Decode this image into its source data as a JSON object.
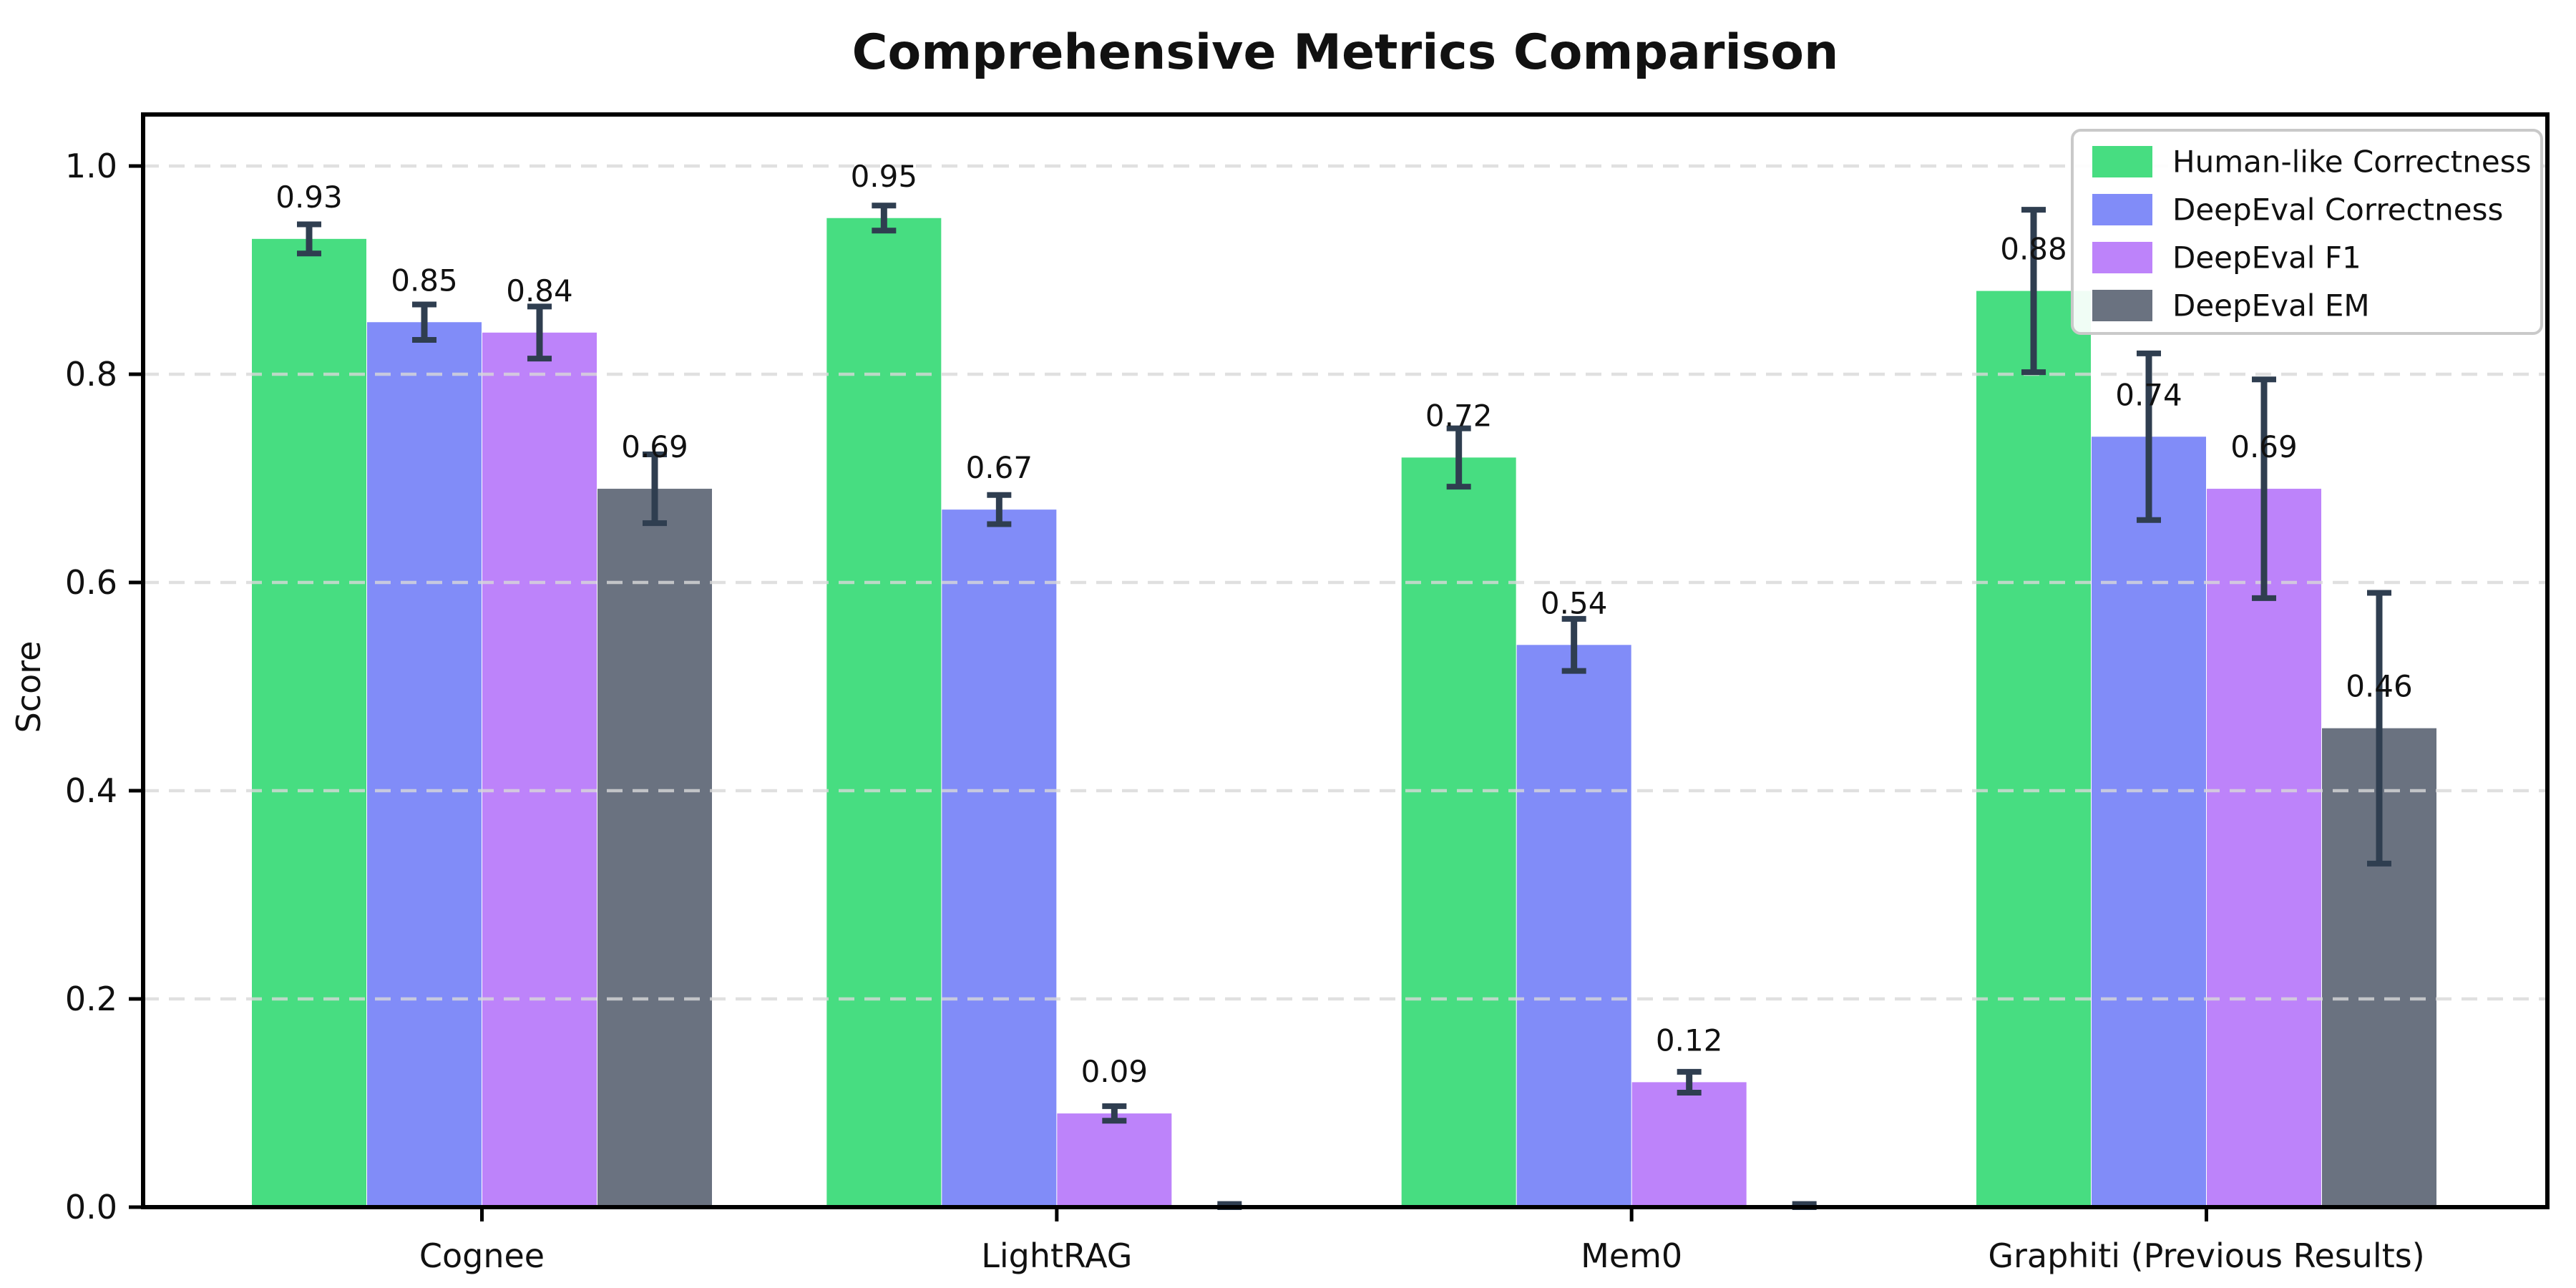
{
  "figure": {
    "title": "Comprehensive Metrics Comparison",
    "y_axis_label": "Score"
  },
  "chart_data": {
    "type": "bar",
    "title": "Comprehensive Metrics Comparison",
    "xlabel": "",
    "ylabel": "Score",
    "ylim": [
      0,
      1.05
    ],
    "yticks": [
      "0.0",
      "0.2",
      "0.4",
      "0.6",
      "0.8",
      "1.0"
    ],
    "grid": {
      "axis": "y",
      "style": "dashed",
      "color": "#d9d9d9",
      "drawn_over_bars": true
    },
    "legend": {
      "position": "upper right",
      "entries": [
        "Human-like Correctness",
        "DeepEval Correctness",
        "DeepEval F1",
        "DeepEval EM"
      ]
    },
    "categories": [
      "Cognee",
      "LightRAG",
      "Mem0",
      "Graphiti (Previous Results)"
    ],
    "series": [
      {
        "name": "Human-like Correctness",
        "color": "#47dd81",
        "values": [
          0.93,
          0.95,
          0.72,
          0.88
        ],
        "errors": [
          0.014,
          0.012,
          0.028,
          0.078
        ],
        "labels": [
          "0.93",
          "0.95",
          "0.72",
          "0.88"
        ]
      },
      {
        "name": "DeepEval Correctness",
        "color": "#818cf8",
        "values": [
          0.85,
          0.67,
          0.54,
          0.74
        ],
        "errors": [
          0.017,
          0.014,
          0.025,
          0.08
        ],
        "labels": [
          "0.85",
          "0.67",
          "0.54",
          "0.74"
        ]
      },
      {
        "name": "DeepEval F1",
        "color": "#bd83fa",
        "values": [
          0.84,
          0.09,
          0.12,
          0.69
        ],
        "errors": [
          0.025,
          0.007,
          0.01,
          0.105
        ],
        "labels": [
          "0.84",
          "0.09",
          "0.12",
          "0.69"
        ]
      },
      {
        "name": "DeepEval EM",
        "color": "#6a7280",
        "values": [
          0.69,
          0.0,
          0.0,
          0.46
        ],
        "errors": [
          0.033,
          0.003,
          0.003,
          0.13
        ],
        "labels": [
          "0.69",
          "",
          "",
          "0.46"
        ]
      }
    ],
    "error_bar_color": "#2f3e50",
    "axis_color": "#000000",
    "background_color": "#ffffff"
  }
}
